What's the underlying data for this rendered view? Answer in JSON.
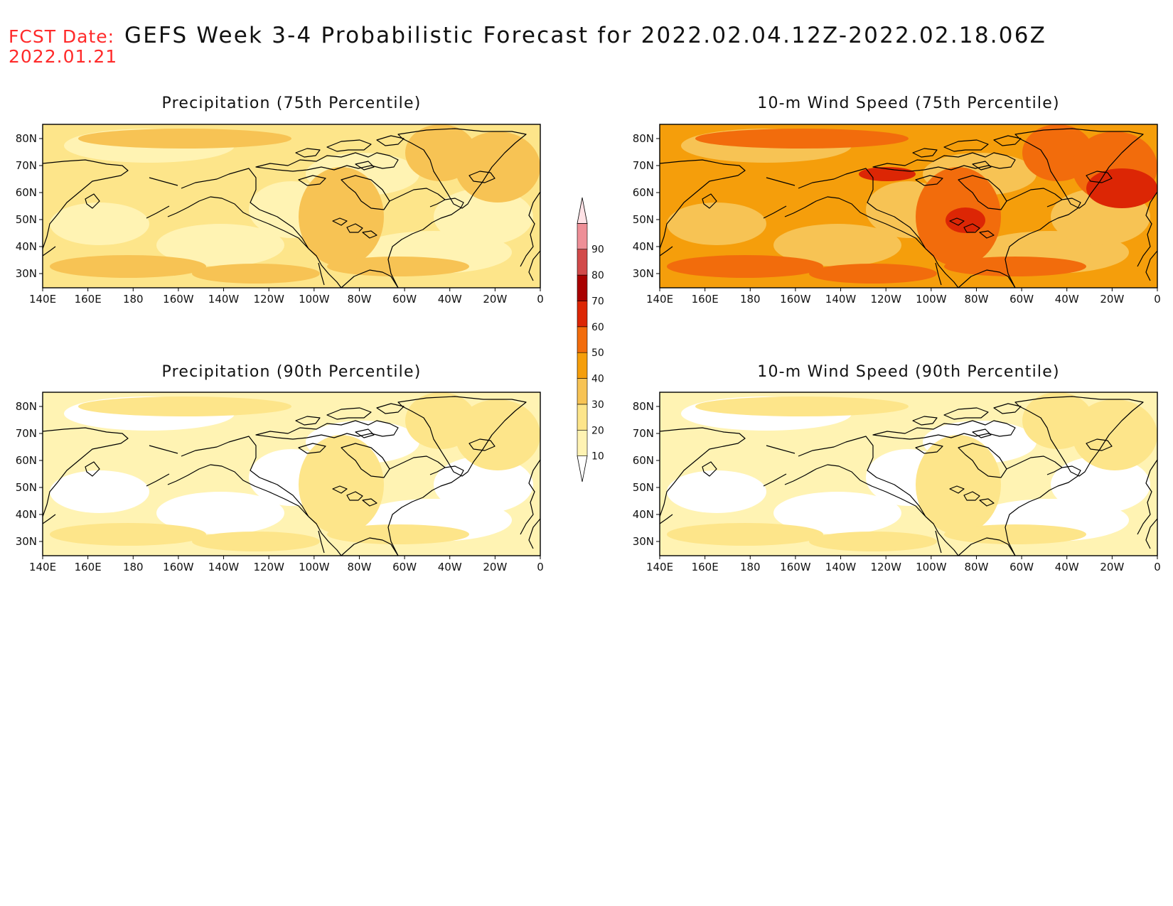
{
  "header": {
    "fcst_label": "FCST Date:",
    "fcst_date": "2022.01.21",
    "title": "GEFS Week 3-4 Probabilistic Forecast for 2022.02.04.12Z-2022.02.18.06Z"
  },
  "axes": {
    "lon_ticks": [
      "140E",
      "160E",
      "180",
      "160W",
      "140W",
      "120W",
      "100W",
      "80W",
      "60W",
      "40W",
      "20W",
      "0"
    ],
    "lat_ticks": [
      "80N",
      "70N",
      "60N",
      "50N",
      "40N",
      "30N"
    ]
  },
  "colorbar": {
    "levels": [
      "10",
      "20",
      "30",
      "40",
      "50",
      "60",
      "70",
      "80",
      "90"
    ],
    "colors": [
      "#ffffff",
      "#fff3b3",
      "#fde58a",
      "#f7c354",
      "#f59e0b",
      "#f26c0c",
      "#dc2605",
      "#a90000",
      "#d24a4a",
      "#ee8f97",
      "#ffe2e6"
    ]
  },
  "panels": [
    {
      "id": "precip-75",
      "title": "Precipitation (75th Percentile)",
      "fill_level": 2
    },
    {
      "id": "wind-75",
      "title": "10-m Wind Speed (75th Percentile)",
      "fill_level": 4
    },
    {
      "id": "precip-90",
      "title": "Precipitation (90th Percentile)",
      "fill_level": 1
    },
    {
      "id": "wind-90",
      "title": "10-m Wind Speed (90th Percentile)",
      "fill_level": 1
    }
  ]
}
